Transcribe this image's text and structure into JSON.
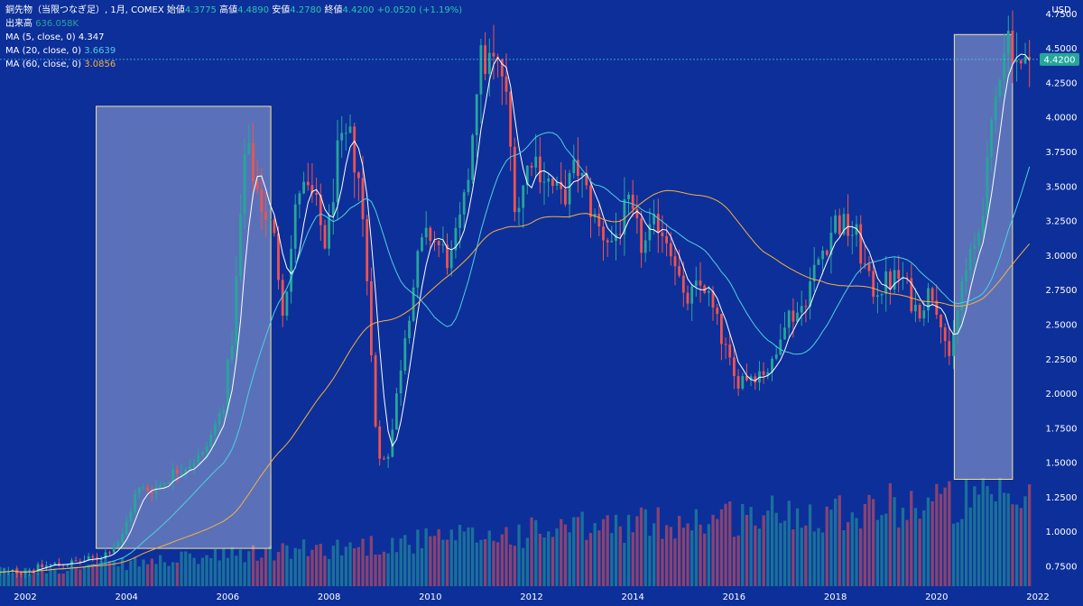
{
  "legend": {
    "title": "銅先物（当限つなぎ足）, 1月, COMEX",
    "open_label": "始値",
    "open_value": "4.3775",
    "high_label": "高値",
    "high_value": "4.4890",
    "low_label": "安値",
    "low_value": "4.2780",
    "close_label": "終値",
    "close_value": "4.4200",
    "change": "+0.0520 (+1.19%)",
    "volume_label": "出来高",
    "volume_value": "636.058K",
    "ma5_label": "MA (5, close, 0)",
    "ma5_value": "4.347",
    "ma20_label": "MA (20, close, 0)",
    "ma20_value": "3.6639",
    "ma60_label": "MA (60, close, 0)",
    "ma60_value": "3.0856"
  },
  "colors": {
    "background": "#0d2f99",
    "up": "#26a69a",
    "down": "#ef5350",
    "ma5": "#ffffff",
    "ma20": "#4dd0e1",
    "ma60": "#f5b041",
    "highlight_border": "#f2e49b",
    "price_tag": "#26a69a"
  },
  "chart_data": {
    "type": "candlestick",
    "currency_label": "USD",
    "last_price_label": "4.4200",
    "y_ticks": [
      "4.7500",
      "4.5000",
      "4.2500",
      "4.0000",
      "3.7500",
      "3.5000",
      "3.2500",
      "3.0000",
      "2.7500",
      "2.5000",
      "2.2500",
      "2.0000",
      "1.7500",
      "1.5000",
      "1.2500",
      "1.0000",
      "0.7500"
    ],
    "x_ticks": [
      "2002",
      "2004",
      "2006",
      "2008",
      "2010",
      "2012",
      "2014",
      "2016",
      "2018",
      "2020",
      "2022"
    ],
    "ylim": [
      0.6,
      4.85
    ],
    "start": 2001.5,
    "end": 2022.0,
    "interval_months": 1,
    "anchors": [
      [
        2001.5,
        0.7
      ],
      [
        2002.0,
        0.72
      ],
      [
        2002.5,
        0.76
      ],
      [
        2003.0,
        0.78
      ],
      [
        2003.5,
        0.82
      ],
      [
        2003.9,
        0.95
      ],
      [
        2004.2,
        1.3
      ],
      [
        2004.6,
        1.32
      ],
      [
        2005.0,
        1.45
      ],
      [
        2005.5,
        1.55
      ],
      [
        2005.9,
        1.9
      ],
      [
        2006.1,
        2.45
      ],
      [
        2006.35,
        3.8
      ],
      [
        2006.6,
        3.45
      ],
      [
        2006.9,
        3.15
      ],
      [
        2007.1,
        2.6
      ],
      [
        2007.4,
        3.5
      ],
      [
        2007.7,
        3.4
      ],
      [
        2007.95,
        3.05
      ],
      [
        2008.15,
        3.7
      ],
      [
        2008.4,
        3.85
      ],
      [
        2008.6,
        3.55
      ],
      [
        2008.8,
        2.6
      ],
      [
        2008.95,
        1.5
      ],
      [
        2009.2,
        1.6
      ],
      [
        2009.5,
        2.45
      ],
      [
        2009.8,
        3.05
      ],
      [
        2010.0,
        3.15
      ],
      [
        2010.4,
        2.95
      ],
      [
        2010.7,
        3.4
      ],
      [
        2010.95,
        4.4
      ],
      [
        2011.2,
        4.4
      ],
      [
        2011.45,
        4.3
      ],
      [
        2011.7,
        3.3
      ],
      [
        2012.0,
        3.75
      ],
      [
        2012.3,
        3.55
      ],
      [
        2012.6,
        3.4
      ],
      [
        2012.9,
        3.65
      ],
      [
        2013.3,
        3.2
      ],
      [
        2013.6,
        3.1
      ],
      [
        2013.9,
        3.35
      ],
      [
        2014.2,
        3.05
      ],
      [
        2014.5,
        3.25
      ],
      [
        2014.8,
        3.05
      ],
      [
        2015.0,
        2.65
      ],
      [
        2015.4,
        2.8
      ],
      [
        2015.8,
        2.35
      ],
      [
        2016.0,
        2.1
      ],
      [
        2016.4,
        2.15
      ],
      [
        2016.8,
        2.2
      ],
      [
        2016.95,
        2.55
      ],
      [
        2017.3,
        2.6
      ],
      [
        2017.7,
        3.0
      ],
      [
        2018.0,
        3.25
      ],
      [
        2018.4,
        3.15
      ],
      [
        2018.7,
        2.75
      ],
      [
        2019.0,
        2.8
      ],
      [
        2019.3,
        2.85
      ],
      [
        2019.6,
        2.6
      ],
      [
        2019.9,
        2.75
      ],
      [
        2020.1,
        2.55
      ],
      [
        2020.25,
        2.2
      ],
      [
        2020.5,
        2.8
      ],
      [
        2020.8,
        3.1
      ],
      [
        2021.0,
        3.6
      ],
      [
        2021.3,
        4.55
      ],
      [
        2021.45,
        4.6
      ],
      [
        2021.7,
        4.3
      ],
      [
        2021.85,
        4.42
      ]
    ],
    "series": [
      {
        "name": "MA (5, close, 0)",
        "period": 5
      },
      {
        "name": "MA (20, close, 0)",
        "period": 20
      },
      {
        "name": "MA (60, close, 0)",
        "period": 60
      }
    ],
    "highlight_periods": [
      {
        "from": 2003.4,
        "to": 2006.85,
        "price_low": 0.88,
        "price_high": 4.08
      },
      {
        "from": 2020.35,
        "to": 2021.5,
        "price_low": 1.38,
        "price_high": 4.6
      }
    ]
  }
}
